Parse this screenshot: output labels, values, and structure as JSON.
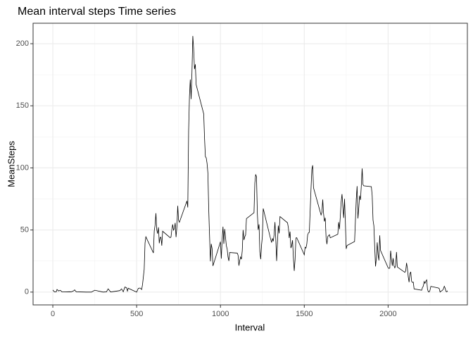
{
  "chart_data": {
    "type": "line",
    "title": "Mean interval steps Time series",
    "x_label": "Interval",
    "y_label": "MeanSteps",
    "x": [
      0,
      10,
      20,
      25,
      35,
      45,
      55,
      100,
      110,
      125,
      130,
      140,
      200,
      230,
      250,
      300,
      320,
      330,
      345,
      400,
      410,
      420,
      430,
      440,
      445,
      450,
      500,
      510,
      520,
      530,
      535,
      545,
      550,
      555,
      600,
      605,
      610,
      615,
      620,
      625,
      630,
      635,
      640,
      645,
      650,
      655,
      700,
      705,
      710,
      715,
      720,
      725,
      730,
      735,
      740,
      745,
      750,
      755,
      800,
      805,
      810,
      815,
      820,
      825,
      830,
      835,
      840,
      845,
      850,
      855,
      900,
      905,
      910,
      915,
      920,
      925,
      930,
      935,
      940,
      945,
      950,
      955,
      1000,
      1005,
      1010,
      1015,
      1020,
      1025,
      1030,
      1035,
      1040,
      1045,
      1050,
      1055,
      1100,
      1105,
      1110,
      1115,
      1120,
      1125,
      1130,
      1135,
      1140,
      1145,
      1150,
      1155,
      1200,
      1205,
      1210,
      1215,
      1220,
      1225,
      1230,
      1235,
      1240,
      1245,
      1250,
      1255,
      1300,
      1305,
      1310,
      1315,
      1320,
      1325,
      1330,
      1335,
      1340,
      1345,
      1350,
      1355,
      1400,
      1405,
      1410,
      1415,
      1420,
      1425,
      1430,
      1435,
      1440,
      1445,
      1450,
      1455,
      1500,
      1505,
      1510,
      1515,
      1520,
      1525,
      1530,
      1535,
      1540,
      1545,
      1550,
      1555,
      1600,
      1605,
      1610,
      1615,
      1620,
      1625,
      1630,
      1635,
      1640,
      1645,
      1650,
      1655,
      1700,
      1705,
      1710,
      1715,
      1720,
      1725,
      1730,
      1735,
      1740,
      1745,
      1750,
      1755,
      1800,
      1805,
      1810,
      1815,
      1820,
      1825,
      1830,
      1835,
      1840,
      1845,
      1850,
      1855,
      1900,
      1905,
      1910,
      1915,
      1920,
      1925,
      1930,
      1935,
      1940,
      1945,
      1950,
      1955,
      2000,
      2005,
      2010,
      2015,
      2020,
      2025,
      2030,
      2035,
      2040,
      2045,
      2050,
      2055,
      2100,
      2105,
      2110,
      2115,
      2120,
      2125,
      2130,
      2135,
      2140,
      2145,
      2150,
      2155,
      2200,
      2205,
      2210,
      2215,
      2220,
      2225,
      2230,
      2235,
      2240,
      2245,
      2250,
      2255,
      2300,
      2305,
      2310,
      2315,
      2320,
      2325,
      2330,
      2335,
      2340,
      2345,
      2350,
      2355
    ],
    "series": [
      {
        "name": "MeanSteps",
        "color": "#000000",
        "values": [
          1.7,
          0.1,
          0.1,
          2.1,
          0.9,
          1.5,
          0.1,
          0.3,
          0.2,
          1.1,
          1.8,
          0.2,
          0,
          0,
          1.5,
          0,
          0.2,
          2.6,
          0.1,
          1.2,
          2.6,
          0.3,
          4.1,
          3.5,
          0.8,
          3.1,
          0,
          3,
          3.3,
          2.1,
          6,
          18.3,
          39.5,
          44.5,
          31.5,
          49.3,
          53.8,
          63.5,
          50,
          47.1,
          52.2,
          39.3,
          44,
          44.2,
          37.4,
          49,
          43.8,
          44.4,
          50.5,
          54.5,
          49.9,
          51,
          55.7,
          44.3,
          52.3,
          69.5,
          57.8,
          56.2,
          73.4,
          68.2,
          129.4,
          157.5,
          171.2,
          155.4,
          177.3,
          206.2,
          195.9,
          179.6,
          183.4,
          167,
          143.5,
          124,
          109.1,
          108.1,
          103.7,
          95.9,
          66.2,
          45.2,
          24.8,
          38.8,
          35,
          21.1,
          40.6,
          27,
          42.4,
          52.7,
          38.9,
          50.8,
          44.3,
          37.4,
          34.7,
          28.3,
          25.1,
          31.9,
          31.4,
          29.7,
          21.3,
          25.5,
          28.4,
          26.5,
          33.4,
          50,
          42,
          44.6,
          46,
          59.2,
          63.9,
          87.7,
          94.8,
          92.8,
          63.4,
          50.2,
          54.5,
          32.4,
          26.5,
          37.7,
          45.1,
          67.3,
          42.3,
          39.9,
          43.3,
          40.9,
          46.2,
          56.4,
          42.8,
          25.1,
          39.9,
          53.5,
          47.3,
          60.8,
          55.8,
          51.9,
          43.6,
          48.7,
          35.5,
          37.5,
          41.8,
          27.5,
          17.1,
          26.1,
          43.6,
          43.8,
          30,
          36.1,
          35.5,
          38.8,
          46,
          47.8,
          48.1,
          65.3,
          82.9,
          98.7,
          102.1,
          84,
          62.1,
          64.1,
          74.5,
          63.2,
          56.9,
          59.8,
          43.9,
          38.6,
          44.7,
          45.5,
          46.2,
          43.7,
          46.6,
          56.3,
          50.7,
          61.2,
          72.7,
          78.9,
          68.9,
          59.7,
          75.1,
          56.5,
          34.8,
          37.5,
          40.7,
          58,
          74.7,
          85.3,
          59.3,
          67.8,
          77.7,
          74.2,
          85.3,
          99.5,
          86.6,
          85.6,
          84.9,
          77.8,
          58,
          53.4,
          36.3,
          20.7,
          27.4,
          40,
          30.2,
          25.5,
          45.7,
          33.5,
          19.6,
          19,
          19.3,
          33.3,
          26.8,
          21.2,
          27.3,
          21.3,
          19.5,
          21.3,
          32.3,
          20.2,
          15.9,
          17.2,
          23.5,
          19.2,
          12.5,
          8,
          14.7,
          16.3,
          8.7,
          7.8,
          8.1,
          2.6,
          1.5,
          3.7,
          4.8,
          8.5,
          7.1,
          8.7,
          9.8,
          2.2,
          0.3,
          0.1,
          1.6,
          4.6,
          3.3,
          2.8,
          0,
          0.8,
          1,
          1.6,
          2.6,
          4.7,
          3.3,
          0.6,
          0.2,
          1.1
        ]
      }
    ],
    "xlim": [
      -117.75,
      2472.75
    ],
    "xticks": [
      0,
      500,
      1000,
      1500,
      2000
    ],
    "x_minor_ticks": [
      250,
      750,
      1250,
      1750,
      2250
    ],
    "ylim": [
      -10.31,
      216.48
    ],
    "yticks": [
      0,
      50,
      100,
      150,
      200
    ],
    "y_minor_ticks": [
      25,
      75,
      125,
      175
    ],
    "grid": true
  }
}
